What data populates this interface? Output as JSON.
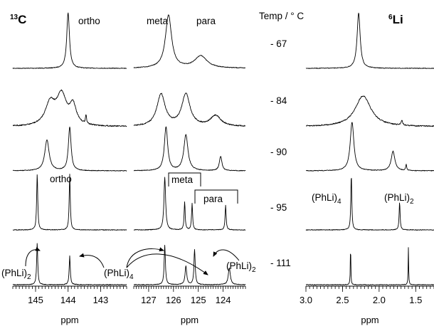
{
  "chart_data": {
    "type": "line",
    "nuclei_titles": {
      "c13_sup": "13",
      "c13_main": "C",
      "li6_sup": "6",
      "li6_main": "Li"
    },
    "temp_header": "Temp / ° C",
    "temperatures": [
      "- 67",
      "- 84",
      "- 90",
      "- 95",
      "- 111"
    ],
    "panels": [
      {
        "id": "ortho",
        "xlabel": "ppm",
        "x_range": [
          145.7,
          142.2
        ],
        "ticks": [
          "145",
          "144",
          "143"
        ],
        "tick_values": [
          145,
          144,
          143
        ]
      },
      {
        "id": "metapara",
        "xlabel": "ppm",
        "x_range": [
          127.6,
          123.1
        ],
        "ticks": [
          "127",
          "126",
          "125",
          "124"
        ],
        "tick_values": [
          127,
          126,
          125,
          124
        ]
      },
      {
        "id": "li",
        "xlabel": "ppm",
        "x_range": [
          3.0,
          1.25
        ],
        "ticks": [
          "3.0",
          "2.5",
          "2.0",
          "1.5"
        ],
        "tick_values": [
          3.0,
          2.5,
          2.0,
          1.5
        ]
      }
    ],
    "peak_labels": {
      "ortho_top": "ortho",
      "meta_top": "meta",
      "para_top": "para",
      "ortho_mid": "ortho",
      "meta_box": "meta",
      "para_box": "para",
      "phli2_left": "(PhLi)",
      "phli4_mid": "(PhLi)",
      "phli2_right": "(PhLi)",
      "li_phli4": "(PhLi)",
      "li_phli2": "(PhLi)",
      "sub4": "4",
      "sub2": "2"
    },
    "spectra": [
      {
        "temperature": -67,
        "ortho": [
          {
            "ppm": 144.0,
            "h": 1.0,
            "w": 0.05
          }
        ],
        "metapara": [
          {
            "ppm": 126.2,
            "h": 0.95,
            "w": 0.15
          },
          {
            "ppm": 124.9,
            "h": 0.22,
            "w": 0.3
          }
        ],
        "li": [
          {
            "ppm": 2.28,
            "h": 1.0,
            "w": 0.025
          }
        ]
      },
      {
        "temperature": -84,
        "ortho": [
          {
            "ppm": 144.55,
            "h": 0.52,
            "w": 0.18
          },
          {
            "ppm": 144.2,
            "h": 0.7,
            "w": 0.18
          },
          {
            "ppm": 143.85,
            "h": 0.45,
            "w": 0.12
          },
          {
            "ppm": 143.45,
            "h": 0.2,
            "w": 0.02
          }
        ],
        "metapara": [
          {
            "ppm": 126.5,
            "h": 0.75,
            "w": 0.2
          },
          {
            "ppm": 125.5,
            "h": 0.75,
            "w": 0.2
          },
          {
            "ppm": 124.3,
            "h": 0.25,
            "w": 0.25
          }
        ],
        "li": [
          {
            "ppm": 2.22,
            "h": 0.72,
            "w": 0.13
          },
          {
            "ppm": 1.69,
            "h": 0.12,
            "w": 0.012
          }
        ]
      },
      {
        "temperature": -90,
        "ortho": [
          {
            "ppm": 144.65,
            "h": 0.6,
            "w": 0.08
          },
          {
            "ppm": 143.95,
            "h": 0.85,
            "w": 0.05
          }
        ],
        "metapara": [
          {
            "ppm": 126.3,
            "h": 0.85,
            "w": 0.08
          },
          {
            "ppm": 125.5,
            "h": 0.7,
            "w": 0.1
          },
          {
            "ppm": 124.1,
            "h": 0.28,
            "w": 0.06
          }
        ],
        "li": [
          {
            "ppm": 2.37,
            "h": 0.95,
            "w": 0.03
          },
          {
            "ppm": 1.81,
            "h": 0.38,
            "w": 0.03
          },
          {
            "ppm": 1.63,
            "h": 0.12,
            "w": 0.008
          }
        ]
      },
      {
        "temperature": -95,
        "ortho": [
          {
            "ppm": 144.95,
            "h": 1.0,
            "w": 0.02
          },
          {
            "ppm": 143.95,
            "h": 1.0,
            "w": 0.02
          }
        ],
        "metapara": [
          {
            "ppm": 126.35,
            "h": 0.95,
            "w": 0.04
          },
          {
            "ppm": 125.55,
            "h": 0.5,
            "w": 0.025
          },
          {
            "ppm": 125.25,
            "h": 0.48,
            "w": 0.025
          },
          {
            "ppm": 123.9,
            "h": 0.45,
            "w": 0.025
          }
        ],
        "li": [
          {
            "ppm": 2.38,
            "h": 1.0,
            "w": 0.008
          },
          {
            "ppm": 1.72,
            "h": 0.5,
            "w": 0.008
          }
        ]
      },
      {
        "temperature": -111,
        "ortho": [
          {
            "ppm": 144.95,
            "h": 1.0,
            "w": 0.02
          },
          {
            "ppm": 143.95,
            "h": 0.7,
            "w": 0.02
          }
        ],
        "metapara": [
          {
            "ppm": 126.35,
            "h": 0.95,
            "w": 0.03
          },
          {
            "ppm": 125.5,
            "h": 0.45,
            "w": 0.04
          },
          {
            "ppm": 125.15,
            "h": 0.85,
            "w": 0.03
          },
          {
            "ppm": 123.75,
            "h": 0.4,
            "w": 0.05
          }
        ],
        "li": [
          {
            "ppm": 2.39,
            "h": 1.0,
            "w": 0.004
          },
          {
            "ppm": 1.6,
            "h": 0.9,
            "w": 0.004
          }
        ]
      }
    ]
  }
}
